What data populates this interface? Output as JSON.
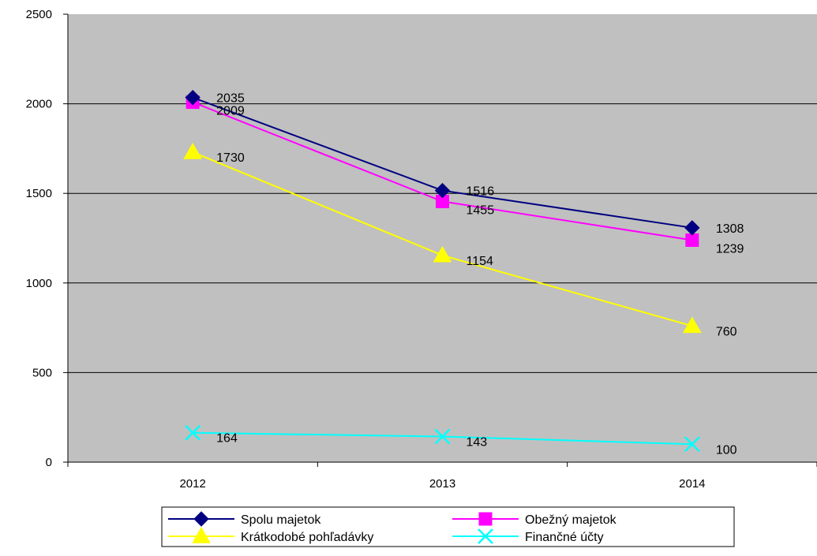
{
  "chart_data": {
    "type": "line",
    "title": "",
    "xlabel": "",
    "ylabel": "",
    "categories": [
      "2012",
      "2013",
      "2014"
    ],
    "ylim": [
      0,
      2500
    ],
    "yticks": [
      0,
      500,
      1000,
      1500,
      2000,
      2500
    ],
    "grid": "horizontal",
    "plot_background": "#c0c0c0",
    "legend_position": "bottom",
    "series": [
      {
        "name": "Spolu majetok",
        "values": [
          2035,
          1516,
          1308
        ],
        "color": "#000080",
        "marker": "diamond"
      },
      {
        "name": "Obežný majetok",
        "values": [
          2009,
          1455,
          1239
        ],
        "color": "#ff00ff",
        "marker": "square"
      },
      {
        "name": "Krátkodobé pohľadávky",
        "values": [
          1730,
          1154,
          760
        ],
        "color": "#ffff00",
        "marker": "triangle"
      },
      {
        "name": "Finančné účty",
        "values": [
          164,
          143,
          100
        ],
        "color": "#00ffff",
        "marker": "x"
      }
    ]
  }
}
